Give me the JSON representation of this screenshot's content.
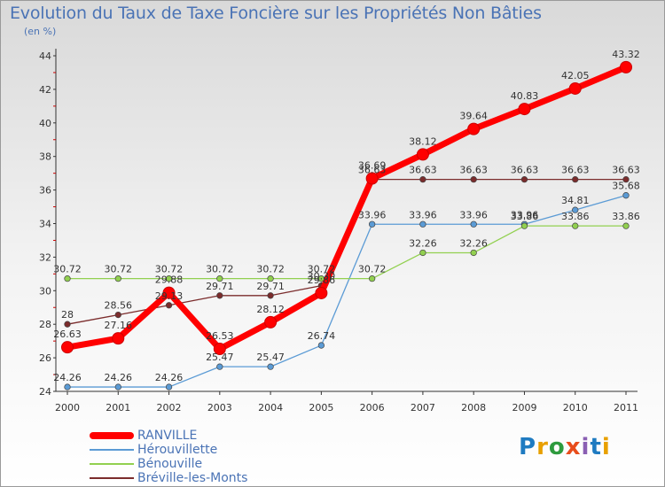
{
  "title": "Evolution du Taux de Taxe Foncière sur les Propriétés Non Bâties",
  "unit_label": "(en %)",
  "brand": {
    "text": "Proxiti"
  },
  "chart_data": {
    "type": "line",
    "title": "Evolution du Taux de Taxe Foncière sur les Propriétés Non Bâties",
    "ylabel": "(en %)",
    "xlabel": "",
    "x": [
      "2000",
      "2001",
      "2002",
      "2003",
      "2004",
      "2005",
      "2006",
      "2007",
      "2008",
      "2009",
      "2010",
      "2011"
    ],
    "ylim": [
      24,
      44
    ],
    "yticks": [
      24,
      26,
      28,
      30,
      32,
      34,
      36,
      38,
      40,
      42,
      44
    ],
    "grid": false,
    "legend_position": "bottom-left",
    "series": [
      {
        "name": "RANVILLE",
        "color": "#ff0000",
        "values": [
          26.63,
          27.16,
          29.88,
          26.53,
          28.12,
          29.86,
          36.69,
          38.12,
          39.64,
          40.83,
          42.05,
          43.32
        ],
        "labels": [
          "26.63",
          "27.16",
          "29.88",
          "26.53",
          "28.12",
          "29.86",
          "36.69",
          "38.12",
          "39.64",
          "40.83",
          "42.05",
          "43.32"
        ]
      },
      {
        "name": "Hérouvillette",
        "color": "#5b9bd5",
        "values": [
          24.26,
          24.26,
          24.26,
          25.47,
          25.47,
          26.74,
          33.96,
          33.96,
          33.96,
          33.96,
          34.81,
          35.68
        ],
        "labels": [
          "24.26",
          "24.26",
          "24.26",
          "25.47",
          "25.47",
          "26.74",
          "33.96",
          "33.96",
          "33.96",
          "33.96",
          "34.81",
          "35.68"
        ]
      },
      {
        "name": "Bénouville",
        "color": "#92d050",
        "values": [
          30.72,
          30.72,
          30.72,
          30.72,
          30.72,
          30.72,
          30.72,
          32.26,
          32.26,
          33.86,
          33.86,
          33.86
        ],
        "labels": [
          "30.72",
          "30.72",
          "30.72",
          "30.72",
          "30.72",
          "30.72",
          "30.72",
          "32.26",
          "32.26",
          "33.86",
          "33.86",
          "33.86"
        ]
      },
      {
        "name": "Bréville-les-Monts",
        "color": "#7b2c2c",
        "values": [
          28.0,
          28.56,
          29.13,
          29.71,
          29.71,
          30.3,
          36.63,
          36.63,
          36.63,
          36.63,
          36.63,
          36.63
        ],
        "labels": [
          "28",
          "28.56",
          "29.13",
          "29.71",
          "29.71",
          "30.30",
          "36.63",
          "36.63",
          "36.63",
          "36.63",
          "36.63",
          "36.63"
        ]
      }
    ]
  }
}
